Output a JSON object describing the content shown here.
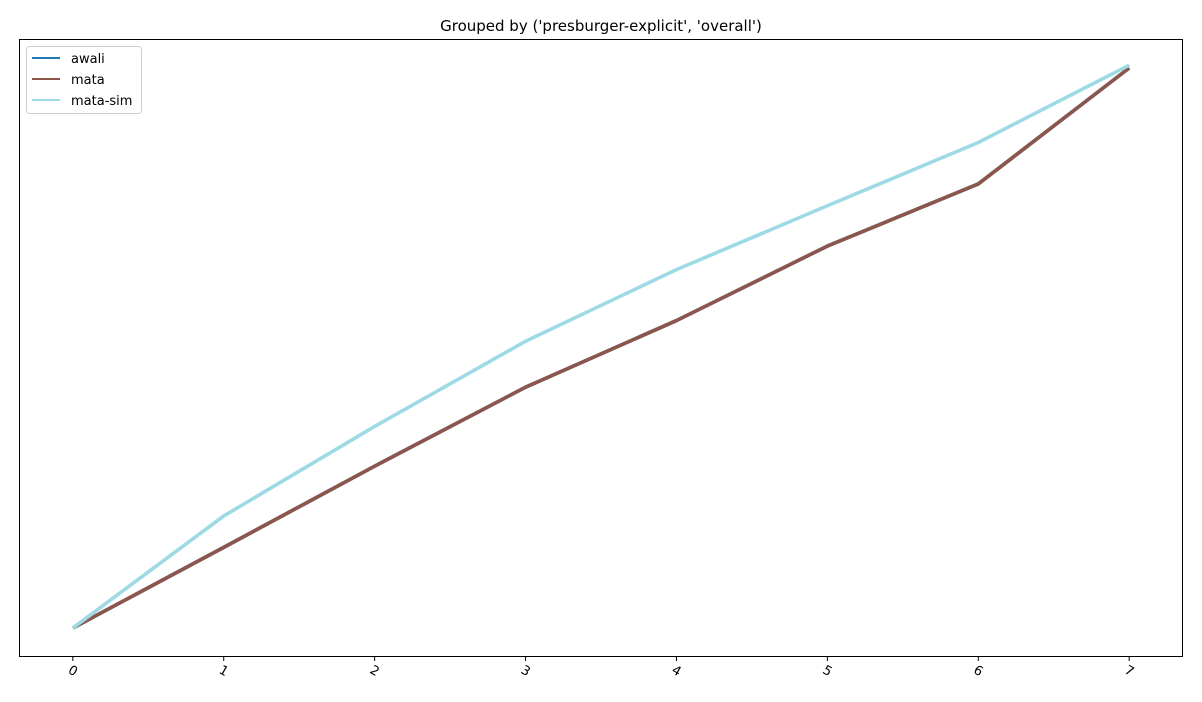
{
  "chart_data": {
    "type": "line",
    "title": "Grouped by ('presburger-explicit', 'overall')",
    "xlabel": "",
    "ylabel": "",
    "x": [
      0,
      1,
      2,
      3,
      4,
      5,
      6,
      7
    ],
    "xticks": [
      "0",
      "1",
      "2",
      "3",
      "4",
      "5",
      "6",
      "7"
    ],
    "xlim": [
      -0.35,
      7.35
    ],
    "ylim": [
      -0.05,
      1.05
    ],
    "yticks_visible": false,
    "grid": false,
    "legend_position": "top-left",
    "series": [
      {
        "name": "awali",
        "color": "#1f77b4",
        "values": [
          0.0,
          0.144,
          0.289,
          0.43,
          0.549,
          0.682,
          0.793,
          1.0
        ]
      },
      {
        "name": "mata",
        "color": "#8c564b",
        "values": [
          0.0,
          0.144,
          0.289,
          0.43,
          0.549,
          0.682,
          0.793,
          1.0
        ]
      },
      {
        "name": "mata-sim",
        "color": "#9edae5",
        "values": [
          0.0,
          0.2,
          0.36,
          0.512,
          0.64,
          0.754,
          0.867,
          1.005
        ]
      }
    ]
  }
}
